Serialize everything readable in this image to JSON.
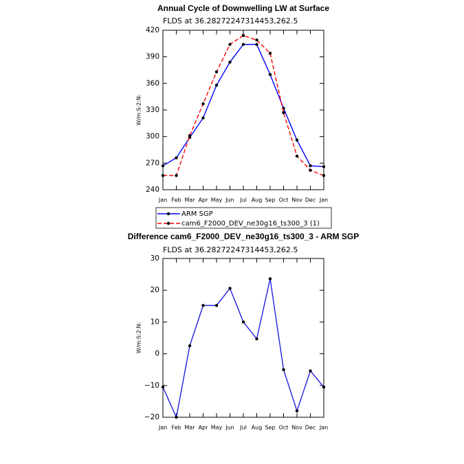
{
  "chart_data": [
    {
      "type": "line",
      "title": "Annual Cycle of Downwelling LW at Surface",
      "subtitle": "FLDS at 36.28272247314453,262.5",
      "ylabel": "W/m:S:2:N:",
      "categories": [
        "Jan",
        "Feb",
        "Mar",
        "Apr",
        "May",
        "Jun",
        "Jul",
        "Aug",
        "Sep",
        "Oct",
        "Nov",
        "Dec",
        "Jan"
      ],
      "series": [
        {
          "name": "ARM SGP",
          "color": "#0000ff",
          "dash": false,
          "values": [
            267,
            276,
            299,
            321,
            358,
            384,
            404,
            404,
            370,
            332,
            296,
            267,
            266
          ]
        },
        {
          "name": "cam6_F2000_DEV_ne30g16_ts300_3 (1)",
          "color": "#ff0000",
          "dash": true,
          "values": [
            256,
            256,
            301,
            337,
            373,
            404,
            414,
            409,
            394,
            327,
            278,
            262,
            256
          ]
        }
      ],
      "ylim": [
        240,
        420
      ],
      "yticks": [
        240,
        270,
        300,
        330,
        360,
        390,
        420
      ]
    },
    {
      "type": "line",
      "title": "Difference cam6_F2000_DEV_ne30g16_ts300_3 - ARM SGP",
      "subtitle": "FLDS at 36.28272247314453,262.5",
      "ylabel": "W/m:S:2:N:",
      "categories": [
        "Jan",
        "Feb",
        "Mar",
        "Apr",
        "May",
        "Jun",
        "Jul",
        "Aug",
        "Sep",
        "Oct",
        "Nov",
        "Dec",
        "Jan"
      ],
      "values": [
        -10.5,
        -20,
        2.5,
        15.2,
        15.2,
        20.6,
        10,
        4.7,
        23.6,
        -5,
        -18,
        -5.4,
        -10.5
      ],
      "color": "#2020e0",
      "ylim": [
        -20,
        30
      ],
      "yticks": [
        {
          "value": -20,
          "label": "−20"
        },
        {
          "value": -10,
          "label": "−10"
        },
        0,
        10,
        20,
        30
      ]
    }
  ]
}
